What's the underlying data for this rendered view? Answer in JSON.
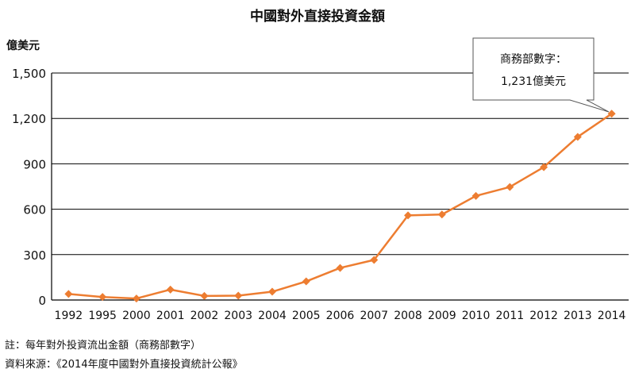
{
  "chart_data": {
    "type": "line",
    "title": "中國對外直接投資金額",
    "ylabel": "億美元",
    "xlabel": "",
    "categories": [
      "1992",
      "1995",
      "2000",
      "2001",
      "2002",
      "2003",
      "2004",
      "2005",
      "2006",
      "2007",
      "2008",
      "2009",
      "2010",
      "2011",
      "2012",
      "2013",
      "2014"
    ],
    "series": [
      {
        "values": [
          40,
          20,
          10,
          69,
          27,
          29,
          55,
          123,
          212,
          265,
          559,
          565,
          688,
          747,
          878,
          1078,
          1231
        ]
      }
    ],
    "ylim": [
      0,
      1500
    ],
    "yticks": [
      0,
      300,
      600,
      900,
      1200,
      1500
    ],
    "ytick_labels": [
      "0",
      "300",
      "600",
      "900",
      "1,200",
      "1,500"
    ],
    "grid": "horizontal",
    "line_color": "#ed7d31",
    "callout": {
      "line1": "商務部數字：",
      "line2": "1,231億美元"
    }
  },
  "notes": {
    "note": "註：每年對外投資流出金額（商務部數字）",
    "source": "資料來源：《2014年度中國對外直接投資統計公報》"
  }
}
